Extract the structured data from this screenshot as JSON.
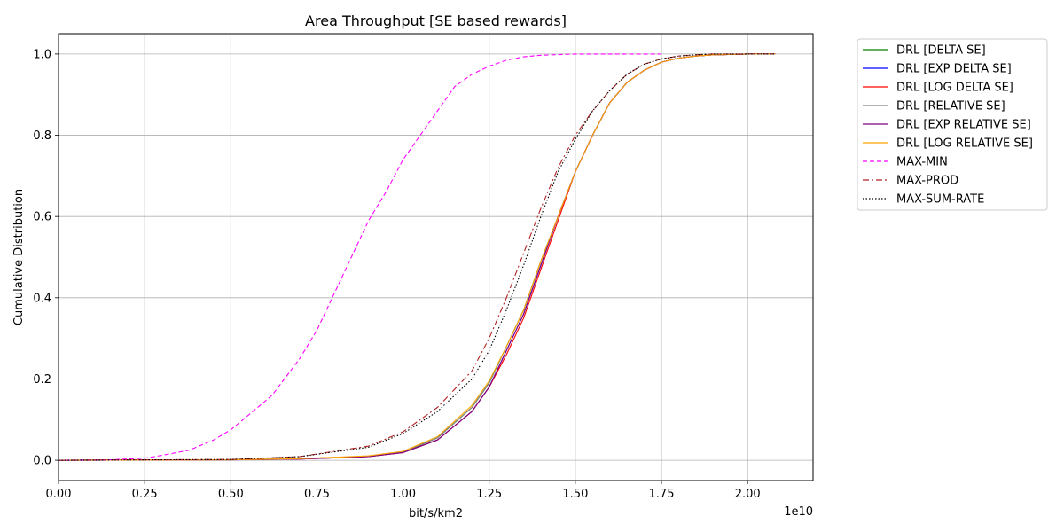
{
  "chart_data": {
    "type": "line",
    "title": "Area Throughput [SE based rewards]",
    "xlabel": "bit/s/km2",
    "ylabel": "Cumulative Distribution",
    "x_scale_label": "1e10",
    "xlim": [
      0.0,
      2.19
    ],
    "ylim": [
      -0.05,
      1.05
    ],
    "x_ticks": [
      0.0,
      0.25,
      0.5,
      0.75,
      1.0,
      1.25,
      1.5,
      1.75,
      2.0
    ],
    "x_tick_labels": [
      "0.00",
      "0.25",
      "0.50",
      "0.75",
      "1.00",
      "1.25",
      "1.50",
      "1.75",
      "2.00"
    ],
    "y_ticks": [
      0.0,
      0.2,
      0.4,
      0.6,
      0.8,
      1.0
    ],
    "y_tick_labels": [
      "0.0",
      "0.2",
      "0.4",
      "0.6",
      "0.8",
      "1.0"
    ],
    "grid": true,
    "legend_position": "outside-right",
    "series": [
      {
        "name": "DRL [DELTA SE]",
        "color": "#008000",
        "style": "solid",
        "x": [
          0.0,
          0.5,
          0.7,
          0.9,
          1.0,
          1.1,
          1.2,
          1.25,
          1.3,
          1.35,
          1.4,
          1.45,
          1.5,
          1.55,
          1.6,
          1.65,
          1.7,
          1.75,
          1.8,
          1.85,
          1.9,
          2.0,
          2.08
        ],
        "y": [
          0.0,
          0.001,
          0.004,
          0.01,
          0.02,
          0.055,
          0.13,
          0.19,
          0.28,
          0.37,
          0.49,
          0.6,
          0.71,
          0.8,
          0.88,
          0.93,
          0.96,
          0.98,
          0.99,
          0.995,
          0.998,
          1.0,
          1.0
        ]
      },
      {
        "name": "DRL [EXP DELTA SE]",
        "color": "#0000ff",
        "style": "solid",
        "x": [
          0.0,
          0.5,
          0.7,
          0.9,
          1.0,
          1.1,
          1.2,
          1.25,
          1.3,
          1.35,
          1.4,
          1.45,
          1.5,
          1.55,
          1.6,
          1.65,
          1.7,
          1.75,
          1.8,
          1.85,
          1.9,
          2.0,
          2.08
        ],
        "y": [
          0.0,
          0.001,
          0.003,
          0.009,
          0.019,
          0.05,
          0.12,
          0.18,
          0.27,
          0.36,
          0.48,
          0.6,
          0.71,
          0.8,
          0.88,
          0.93,
          0.96,
          0.98,
          0.99,
          0.995,
          0.998,
          1.0,
          1.0
        ]
      },
      {
        "name": "DRL [LOG DELTA SE]",
        "color": "#ff0000",
        "style": "solid",
        "x": [
          0.0,
          0.5,
          0.7,
          0.9,
          1.0,
          1.1,
          1.2,
          1.25,
          1.3,
          1.35,
          1.4,
          1.45,
          1.5,
          1.55,
          1.6,
          1.65,
          1.7,
          1.75,
          1.8,
          1.85,
          1.9,
          2.0,
          2.08
        ],
        "y": [
          0.0,
          0.001,
          0.003,
          0.009,
          0.019,
          0.05,
          0.12,
          0.18,
          0.26,
          0.35,
          0.47,
          0.59,
          0.71,
          0.8,
          0.88,
          0.93,
          0.96,
          0.98,
          0.99,
          0.995,
          0.998,
          1.0,
          1.0
        ]
      },
      {
        "name": "DRL [RELATIVE SE]",
        "color": "#808080",
        "style": "solid",
        "x": [
          0.0,
          0.5,
          0.7,
          0.9,
          1.0,
          1.1,
          1.2,
          1.25,
          1.3,
          1.35,
          1.4,
          1.45,
          1.5,
          1.55,
          1.6,
          1.65,
          1.7,
          1.75,
          1.8,
          1.85,
          1.9,
          2.0,
          2.08
        ],
        "y": [
          0.0,
          0.001,
          0.004,
          0.01,
          0.021,
          0.055,
          0.13,
          0.19,
          0.28,
          0.37,
          0.49,
          0.6,
          0.71,
          0.8,
          0.88,
          0.93,
          0.96,
          0.98,
          0.99,
          0.995,
          0.998,
          1.0,
          1.0
        ]
      },
      {
        "name": "DRL [EXP RELATIVE SE]",
        "color": "#800080",
        "style": "solid",
        "x": [
          0.0,
          0.5,
          0.7,
          0.9,
          1.0,
          1.1,
          1.2,
          1.25,
          1.3,
          1.35,
          1.4,
          1.45,
          1.5,
          1.55,
          1.6,
          1.65,
          1.7,
          1.75,
          1.8,
          1.85,
          1.9,
          2.0,
          2.08
        ],
        "y": [
          0.0,
          0.001,
          0.003,
          0.009,
          0.019,
          0.05,
          0.12,
          0.18,
          0.27,
          0.36,
          0.48,
          0.6,
          0.71,
          0.8,
          0.88,
          0.93,
          0.96,
          0.98,
          0.99,
          0.995,
          0.998,
          1.0,
          1.0
        ]
      },
      {
        "name": "DRL [LOG RELATIVE SE]",
        "color": "#ffa500",
        "style": "solid",
        "x": [
          0.0,
          0.5,
          0.7,
          0.9,
          1.0,
          1.1,
          1.2,
          1.25,
          1.3,
          1.35,
          1.4,
          1.45,
          1.5,
          1.55,
          1.6,
          1.65,
          1.7,
          1.75,
          1.8,
          1.85,
          1.9,
          2.0,
          2.08
        ],
        "y": [
          0.0,
          0.001,
          0.004,
          0.011,
          0.022,
          0.058,
          0.135,
          0.195,
          0.28,
          0.37,
          0.49,
          0.6,
          0.71,
          0.8,
          0.88,
          0.93,
          0.96,
          0.98,
          0.99,
          0.995,
          0.998,
          1.0,
          1.0
        ]
      },
      {
        "name": "MAX-MIN",
        "color": "#ff00ff",
        "style": "dashed",
        "x": [
          0.0,
          0.15,
          0.25,
          0.3,
          0.38,
          0.45,
          0.5,
          0.55,
          0.62,
          0.7,
          0.75,
          0.8,
          0.85,
          0.9,
          0.95,
          1.0,
          1.05,
          1.1,
          1.15,
          1.2,
          1.25,
          1.3,
          1.35,
          1.4,
          1.5,
          1.6,
          1.75
        ],
        "y": [
          0.0,
          0.001,
          0.005,
          0.012,
          0.025,
          0.05,
          0.075,
          0.11,
          0.16,
          0.25,
          0.32,
          0.41,
          0.5,
          0.59,
          0.66,
          0.74,
          0.8,
          0.86,
          0.92,
          0.95,
          0.97,
          0.985,
          0.993,
          0.997,
          1.0,
          1.0,
          1.0
        ]
      },
      {
        "name": "MAX-PROD",
        "color": "#b22222",
        "style": "dashdot",
        "x": [
          0.0,
          0.5,
          0.7,
          0.9,
          1.0,
          1.1,
          1.2,
          1.25,
          1.3,
          1.35,
          1.4,
          1.45,
          1.5,
          1.55,
          1.6,
          1.65,
          1.7,
          1.75,
          1.8,
          1.85,
          1.9,
          2.0,
          2.08
        ],
        "y": [
          0.0,
          0.002,
          0.009,
          0.035,
          0.07,
          0.13,
          0.22,
          0.3,
          0.4,
          0.51,
          0.62,
          0.72,
          0.8,
          0.86,
          0.91,
          0.95,
          0.975,
          0.988,
          0.995,
          0.998,
          1.0,
          1.0,
          1.0
        ]
      },
      {
        "name": "MAX-SUM-RATE",
        "color": "#000000",
        "style": "dotted",
        "x": [
          0.0,
          0.5,
          0.7,
          0.9,
          1.0,
          1.1,
          1.2,
          1.25,
          1.3,
          1.35,
          1.4,
          1.45,
          1.5,
          1.55,
          1.6,
          1.65,
          1.7,
          1.75,
          1.8,
          1.85,
          1.9,
          2.0,
          2.08
        ],
        "y": [
          0.0,
          0.002,
          0.009,
          0.032,
          0.066,
          0.12,
          0.2,
          0.27,
          0.37,
          0.48,
          0.6,
          0.71,
          0.79,
          0.86,
          0.91,
          0.95,
          0.975,
          0.988,
          0.995,
          0.998,
          1.0,
          1.0,
          1.0
        ]
      }
    ]
  }
}
